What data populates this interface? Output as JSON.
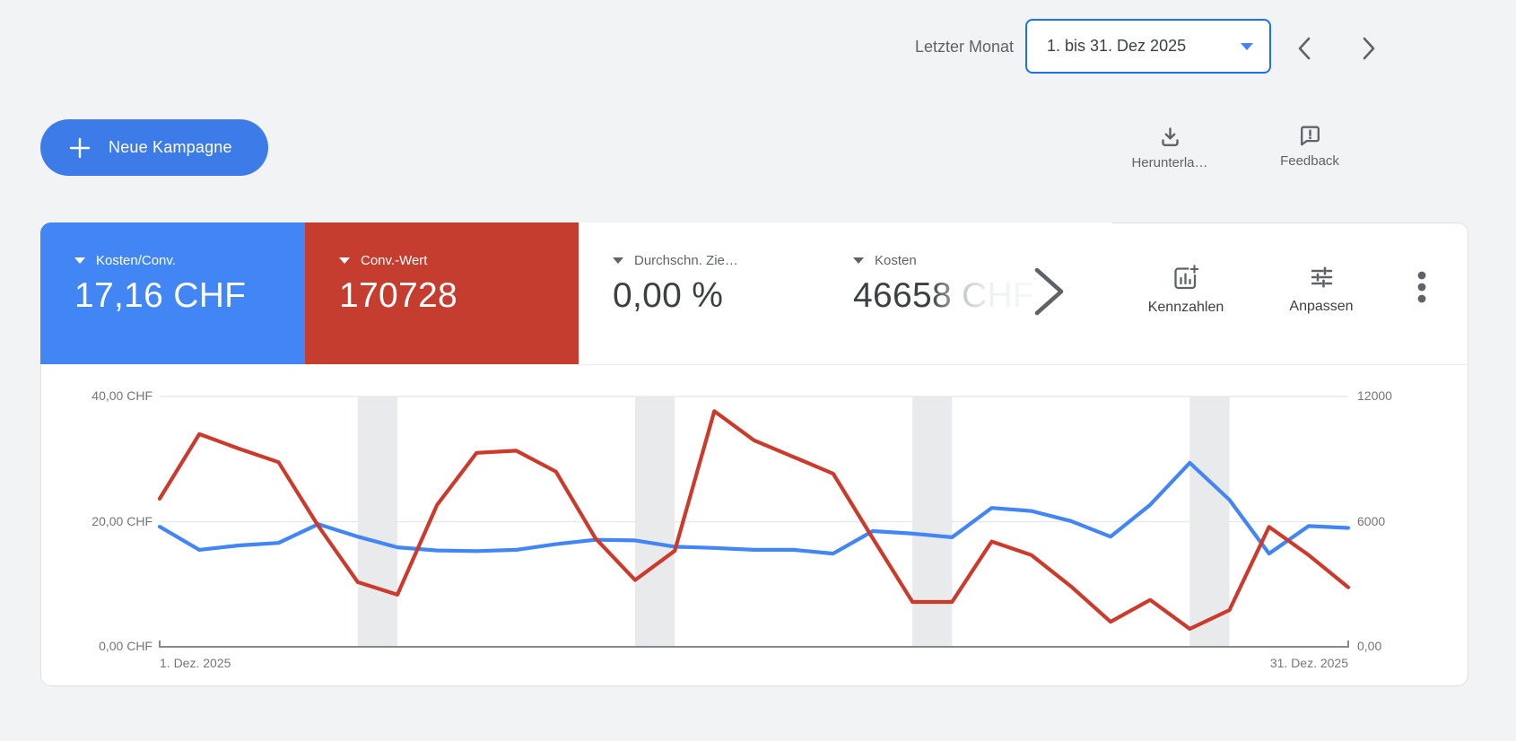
{
  "header": {
    "period_label": "Letzter Monat",
    "date_range": "1. bis 31. Dez 2025"
  },
  "toolbar": {
    "new_campaign_label": "Neue Kampagne",
    "download_label": "Herunterla…",
    "feedback_label": "Feedback"
  },
  "scorecards": [
    {
      "label": "Kosten/Conv.",
      "value": "17,16 CHF",
      "bg": "#4285F4",
      "selected": true
    },
    {
      "label": "Conv.-Wert",
      "value": "170728",
      "bg": "#C43D2F",
      "selected": true
    },
    {
      "label": "Durchschn. Zie…",
      "value": "0,00 %",
      "bg": "#FFFFFF",
      "selected": false
    },
    {
      "label": "Kosten",
      "value": "46658 CHF",
      "bg": "#FFFFFF",
      "selected": false,
      "faded": true
    }
  ],
  "chart_actions": {
    "kennzahlen_label": "Kennzahlen",
    "anpassen_label": "Anpassen"
  },
  "chart_data": {
    "type": "line",
    "x_axis": {
      "days": 31,
      "start_label": "1. Dez. 2025",
      "end_label": "31. Dez. 2025"
    },
    "left_axis": {
      "max": 40,
      "unit": "CHF",
      "ticks": [
        {
          "value": 0,
          "label": "0,00 CHF"
        },
        {
          "value": 20,
          "label": "20,00 CHF"
        },
        {
          "value": 40,
          "label": "40,00 CHF"
        }
      ]
    },
    "right_axis": {
      "max": 12000,
      "unit": "",
      "ticks": [
        {
          "value": 0,
          "label": "0,00"
        },
        {
          "value": 6000,
          "label": "6000"
        },
        {
          "value": 12000,
          "label": "12000"
        }
      ]
    },
    "weekend_bands": [
      [
        6,
        7
      ],
      [
        13,
        14
      ],
      [
        20,
        21
      ],
      [
        27,
        28
      ]
    ],
    "band_color": "#e9eaec",
    "grid_color": "#e8e9ea",
    "baseline_color": "#85898d",
    "series": [
      {
        "name": "Kosten/Conv.",
        "axis": "left",
        "color": "#4285F4",
        "values": [
          19.2,
          15.5,
          16.2,
          16.6,
          19.6,
          17.6,
          15.9,
          15.4,
          15.3,
          15.5,
          16.4,
          17.1,
          17.0,
          16.0,
          15.8,
          15.5,
          15.5,
          14.9,
          18.5,
          18.1,
          17.5,
          22.2,
          21.7,
          20.1,
          17.6,
          22.7,
          29.4,
          23.5,
          14.9,
          19.3,
          19.0
        ]
      },
      {
        "name": "Conv.-Wert",
        "axis": "right",
        "color": "#CC3A2C",
        "values": [
          7100,
          10200,
          9500,
          8850,
          5800,
          3100,
          2500,
          6800,
          9300,
          9400,
          8400,
          5200,
          3200,
          4600,
          11300,
          9900,
          9100,
          8300,
          5200,
          2150,
          2150,
          5050,
          4400,
          2900,
          1200,
          2250,
          860,
          1760,
          5750,
          4400,
          2850
        ]
      }
    ]
  }
}
